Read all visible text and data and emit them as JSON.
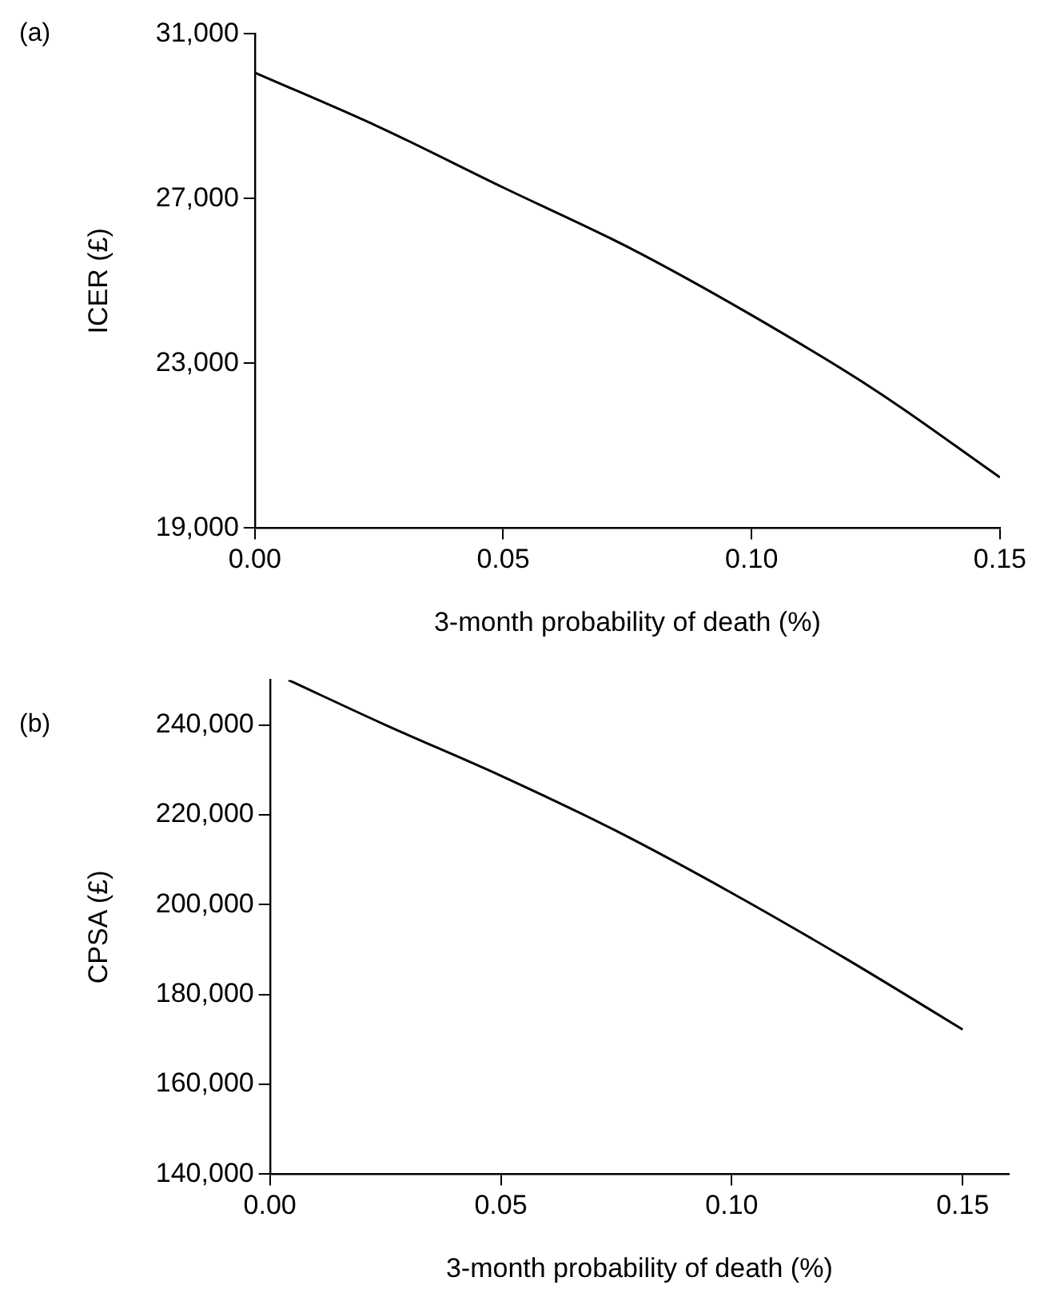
{
  "chart_data": [
    {
      "type": "line",
      "xlabel": "3-month probability of death (%)",
      "ylabel": "ICER (£)",
      "annotations": [
        "(a)"
      ],
      "x": [
        0,
        0.025,
        0.05,
        0.075,
        0.1,
        0.125,
        0.15
      ],
      "series": [
        {
          "color": "#000000",
          "values": [
            30060,
            28740,
            27270,
            25830,
            24170,
            22340,
            20230
          ]
        }
      ],
      "xlim": [
        0,
        0.15
      ],
      "xticks": [
        {
          "value": 0,
          "label": "0.00"
        },
        {
          "value": 0.05,
          "label": "0.05"
        },
        {
          "value": 0.1,
          "label": "0.10"
        },
        {
          "value": 0.15,
          "label": "0.15"
        }
      ],
      "ylim": [
        19000,
        31000
      ],
      "yticks": [
        {
          "value": 19000,
          "label": "19,000"
        },
        {
          "value": 23000,
          "label": "23,000"
        },
        {
          "value": 27000,
          "label": "27,000"
        },
        {
          "value": 31000,
          "label": "31,000"
        }
      ],
      "grid": false,
      "legend": false,
      "marker": "none",
      "line_style": "solid"
    },
    {
      "type": "line",
      "xlabel": "3-month probability of death (%)",
      "ylabel": "CPSA (£)",
      "annotations": [
        "(b)"
      ],
      "x": [
        0.004,
        0.025,
        0.05,
        0.075,
        0.1,
        0.125,
        0.15
      ],
      "series": [
        {
          "color": "#000000",
          "values": [
            250000,
            240000,
            228700,
            216400,
            202600,
            187800,
            172200
          ]
        }
      ],
      "xlim": [
        0,
        0.16
      ],
      "xticks": [
        {
          "value": 0,
          "label": "0.00"
        },
        {
          "value": 0.05,
          "label": "0.05"
        },
        {
          "value": 0.1,
          "label": "0.10"
        },
        {
          "value": 0.15,
          "label": "0.15"
        }
      ],
      "ylim": [
        140000,
        250000
      ],
      "yticks": [
        {
          "value": 140000,
          "label": "140,000"
        },
        {
          "value": 160000,
          "label": "160,000"
        },
        {
          "value": 180000,
          "label": "180,000"
        },
        {
          "value": 200000,
          "label": "200,000"
        },
        {
          "value": 220000,
          "label": "220,000"
        },
        {
          "value": 240000,
          "label": "240,000"
        }
      ],
      "grid": false,
      "legend": false,
      "marker": "none",
      "line_style": "solid"
    }
  ]
}
